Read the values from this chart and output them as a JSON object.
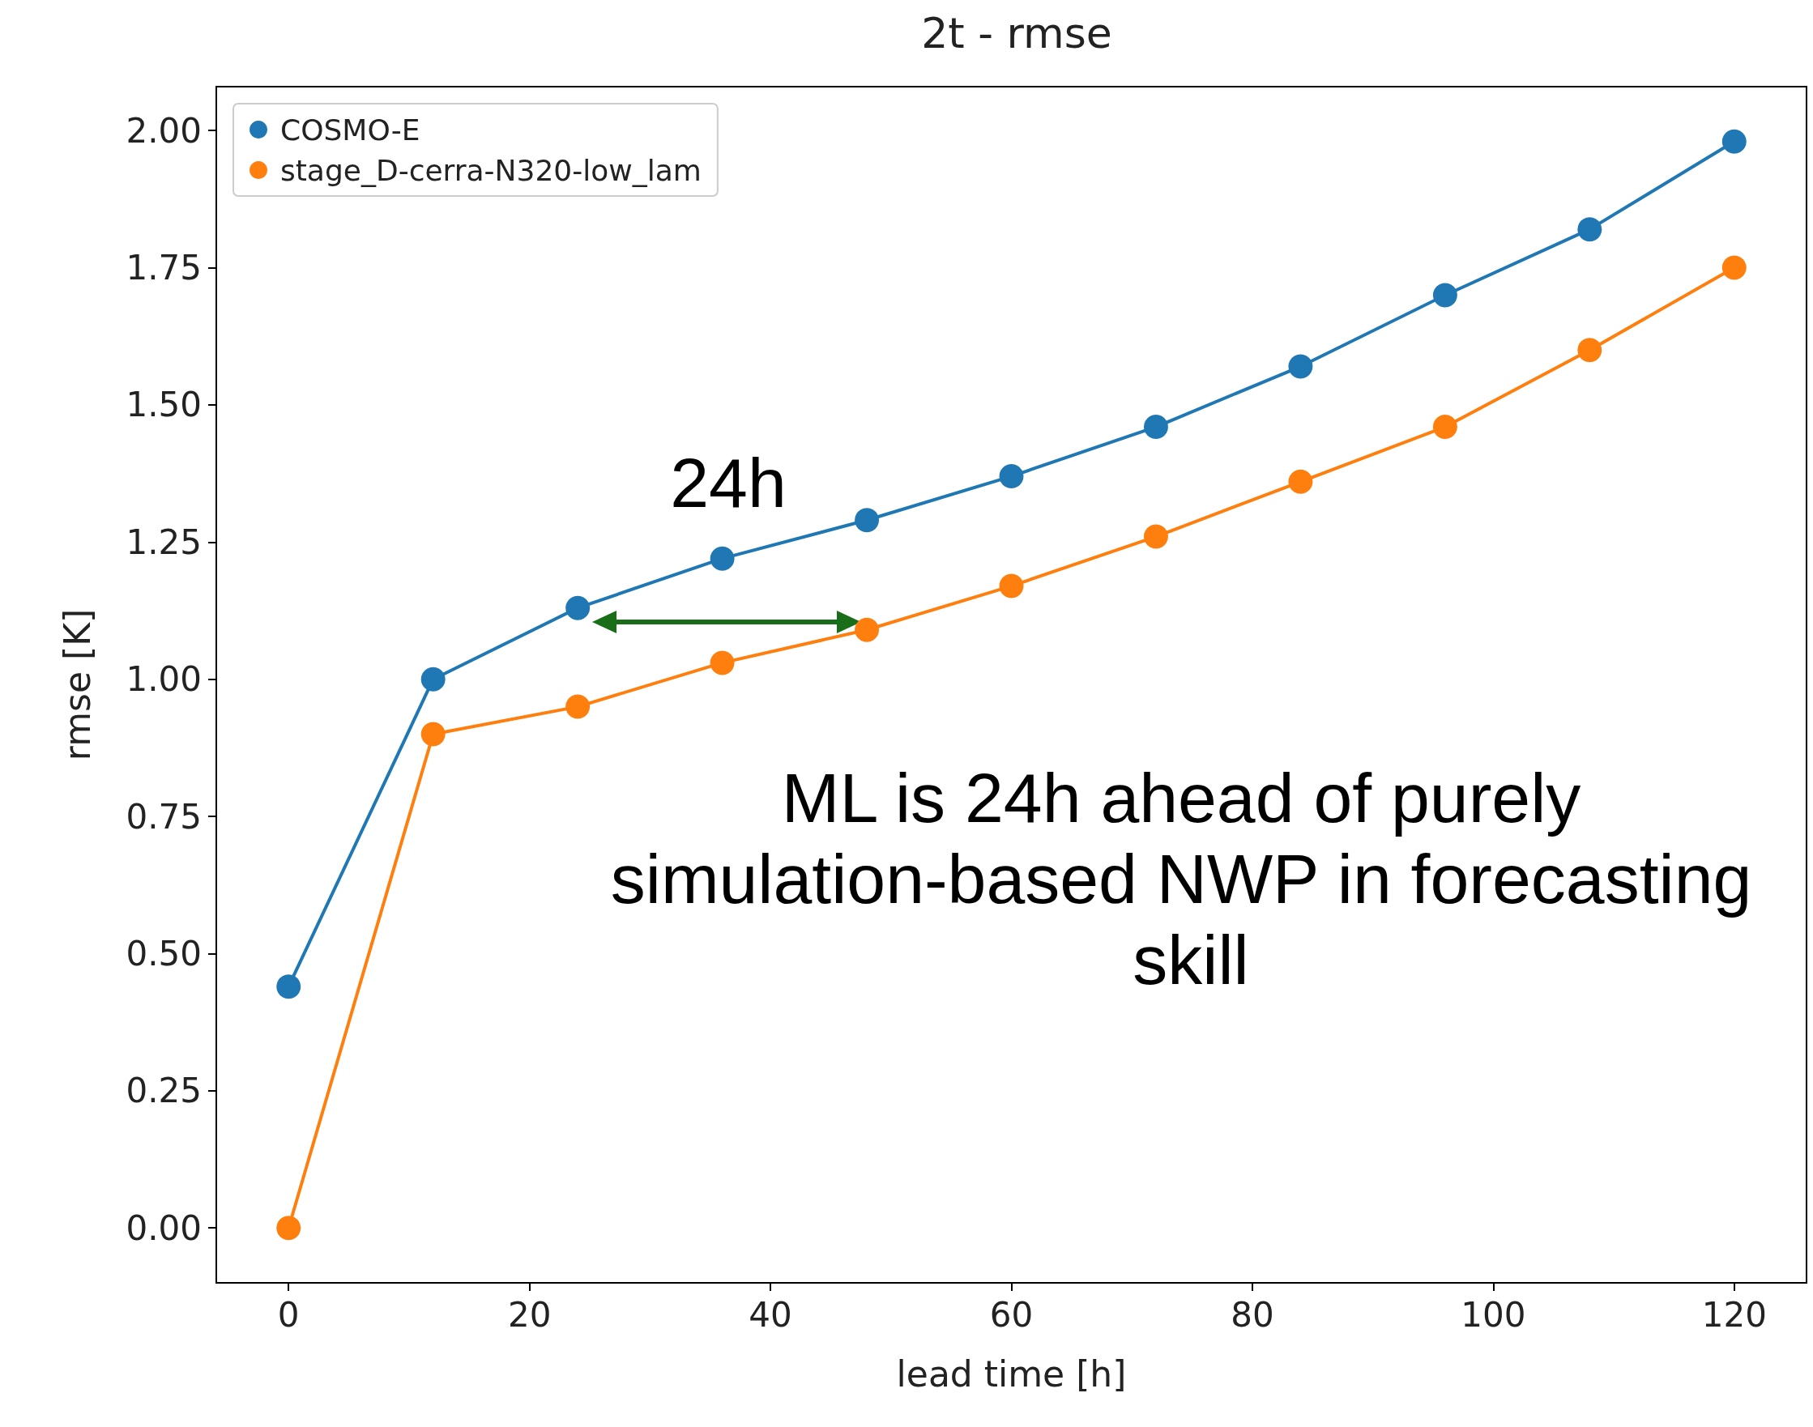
{
  "chart_data": {
    "type": "line",
    "title": "2t - rmse",
    "xlabel": "lead time [h]",
    "ylabel": "rmse [K]",
    "x": [
      0,
      12,
      24,
      36,
      48,
      60,
      72,
      84,
      96,
      108,
      120
    ],
    "series": [
      {
        "name": "COSMO-E",
        "color": "#1f77b4",
        "values": [
          0.44,
          1.0,
          1.13,
          1.22,
          1.29,
          1.37,
          1.46,
          1.57,
          1.7,
          1.82,
          1.98
        ]
      },
      {
        "name": "stage_D-cerra-N320-low_lam",
        "color": "#ff7f0e",
        "values": [
          0.0,
          0.9,
          0.95,
          1.03,
          1.09,
          1.17,
          1.26,
          1.36,
          1.46,
          1.6,
          1.75
        ]
      }
    ],
    "xlim": [
      -6,
      126
    ],
    "xticks": [
      0,
      20,
      40,
      60,
      80,
      100,
      120
    ],
    "ylim": [
      -0.1,
      2.08
    ],
    "yticks": [
      {
        "value": 0,
        "label": "0.00"
      },
      {
        "value": 0.25,
        "label": "0.25"
      },
      {
        "value": 0.5,
        "label": "0.50"
      },
      {
        "value": 0.75,
        "label": "0.75"
      },
      {
        "value": 1,
        "label": "1.00"
      },
      {
        "value": 1.25,
        "label": "1.25"
      },
      {
        "value": 1.5,
        "label": "1.50"
      },
      {
        "value": 1.75,
        "label": "1.75"
      },
      {
        "value": 2,
        "label": "2.00"
      }
    ],
    "annotations": [
      "24h",
      "ML is 24h ahead of purely simulation-based NWP in forecasting skill"
    ],
    "legend": "top left",
    "grid": false,
    "marker": "circle",
    "line_style": "solid"
  }
}
